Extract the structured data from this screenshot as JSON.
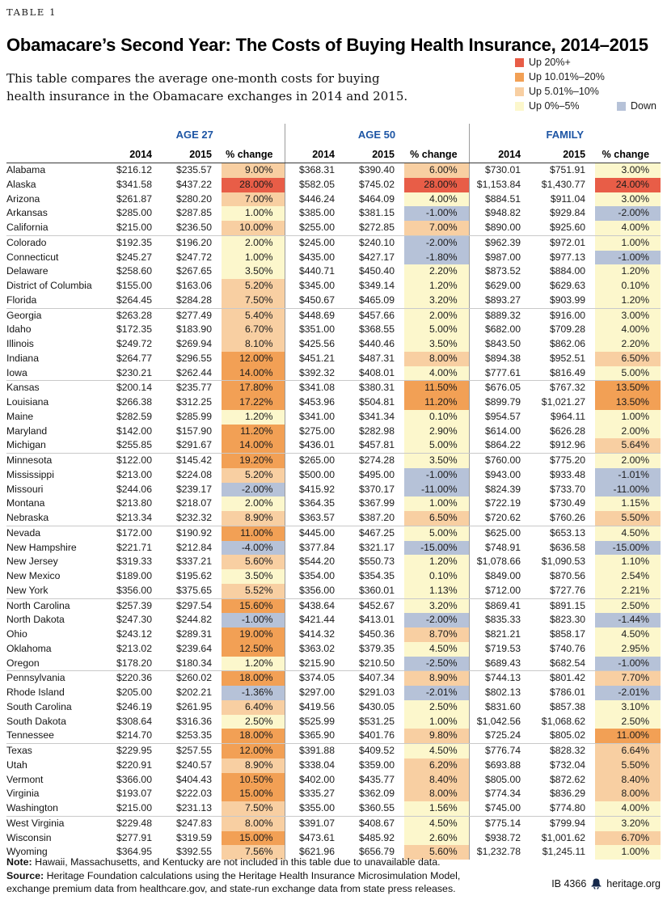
{
  "meta": {
    "table_label": "TABLE 1",
    "title": "Obamacare’s Second Year: The Costs of Buying Health Insurance, 2014–2015",
    "subtitle": "This table compares the average one-month costs for buying health insurance in the Obamacare exchanges in 2014 and 2015."
  },
  "colors": {
    "header_blue": "#1d55a4",
    "up20": "#e85d47",
    "up10": "#f2a055",
    "up5": "#f8cfa2",
    "up0": "#fcf7cc",
    "down": "#b6c2d8"
  },
  "legend": {
    "items": [
      {
        "label": "Up 20%+",
        "bucket": "b20"
      },
      {
        "label": "Up 10.01%–20%",
        "bucket": "b10"
      },
      {
        "label": "Up 5.01%–10%",
        "bucket": "b5"
      },
      {
        "label": "Up 0%–5%",
        "bucket": "b0"
      }
    ],
    "down_item": {
      "label": "Down",
      "bucket": "down"
    }
  },
  "columns": {
    "groups": [
      "AGE 27",
      "AGE 50",
      "FAMILY"
    ],
    "sub": [
      "2014",
      "2015",
      "% change"
    ]
  },
  "chart_data": {
    "type": "table",
    "title": "Obamacare’s Second Year: The Costs of Buying Health Insurance, 2014–2015",
    "column_groups": [
      "AGE 27",
      "AGE 50",
      "FAMILY"
    ],
    "sub_columns": [
      "2014",
      "2015",
      "% change"
    ],
    "color_rule": "pct<0: Down(blue); 0-5: pale yellow; 5.01-10: light orange; 10.01-20: orange; >20: red",
    "rows": [
      [
        "Alabama",
        "$216.12",
        "$235.57",
        "9.00%",
        "$368.31",
        "$390.40",
        "6.00%",
        "$730.01",
        "$751.91",
        "3.00%"
      ],
      [
        "Alaska",
        "$341.58",
        "$437.22",
        "28.00%",
        "$582.05",
        "$745.02",
        "28.00%",
        "$1,153.84",
        "$1,430.77",
        "24.00%"
      ],
      [
        "Arizona",
        "$261.87",
        "$280.20",
        "7.00%",
        "$446.24",
        "$464.09",
        "4.00%",
        "$884.51",
        "$911.04",
        "3.00%"
      ],
      [
        "Arkansas",
        "$285.00",
        "$287.85",
        "1.00%",
        "$385.00",
        "$381.15",
        "-1.00%",
        "$948.82",
        "$929.84",
        "-2.00%"
      ],
      [
        "California",
        "$215.00",
        "$236.50",
        "10.00%",
        "$255.00",
        "$272.85",
        "7.00%",
        "$890.00",
        "$925.60",
        "4.00%"
      ],
      [
        "Colorado",
        "$192.35",
        "$196.20",
        "2.00%",
        "$245.00",
        "$240.10",
        "-2.00%",
        "$962.39",
        "$972.01",
        "1.00%"
      ],
      [
        "Connecticut",
        "$245.27",
        "$247.72",
        "1.00%",
        "$435.00",
        "$427.17",
        "-1.80%",
        "$987.00",
        "$977.13",
        "-1.00%"
      ],
      [
        "Delaware",
        "$258.60",
        "$267.65",
        "3.50%",
        "$440.71",
        "$450.40",
        "2.20%",
        "$873.52",
        "$884.00",
        "1.20%"
      ],
      [
        "District of Columbia",
        "$155.00",
        "$163.06",
        "5.20%",
        "$345.00",
        "$349.14",
        "1.20%",
        "$629.00",
        "$629.63",
        "0.10%"
      ],
      [
        "Florida",
        "$264.45",
        "$284.28",
        "7.50%",
        "$450.67",
        "$465.09",
        "3.20%",
        "$893.27",
        "$903.99",
        "1.20%"
      ],
      [
        "Georgia",
        "$263.28",
        "$277.49",
        "5.40%",
        "$448.69",
        "$457.66",
        "2.00%",
        "$889.32",
        "$916.00",
        "3.00%"
      ],
      [
        "Idaho",
        "$172.35",
        "$183.90",
        "6.70%",
        "$351.00",
        "$368.55",
        "5.00%",
        "$682.00",
        "$709.28",
        "4.00%"
      ],
      [
        "Illinois",
        "$249.72",
        "$269.94",
        "8.10%",
        "$425.56",
        "$440.46",
        "3.50%",
        "$843.50",
        "$862.06",
        "2.20%"
      ],
      [
        "Indiana",
        "$264.77",
        "$296.55",
        "12.00%",
        "$451.21",
        "$487.31",
        "8.00%",
        "$894.38",
        "$952.51",
        "6.50%"
      ],
      [
        "Iowa",
        "$230.21",
        "$262.44",
        "14.00%",
        "$392.32",
        "$408.01",
        "4.00%",
        "$777.61",
        "$816.49",
        "5.00%"
      ],
      [
        "Kansas",
        "$200.14",
        "$235.77",
        "17.80%",
        "$341.08",
        "$380.31",
        "11.50%",
        "$676.05",
        "$767.32",
        "13.50%"
      ],
      [
        "Louisiana",
        "$266.38",
        "$312.25",
        "17.22%",
        "$453.96",
        "$504.81",
        "11.20%",
        "$899.79",
        "$1,021.27",
        "13.50%"
      ],
      [
        "Maine",
        "$282.59",
        "$285.99",
        "1.20%",
        "$341.00",
        "$341.34",
        "0.10%",
        "$954.57",
        "$964.11",
        "1.00%"
      ],
      [
        "Maryland",
        "$142.00",
        "$157.90",
        "11.20%",
        "$275.00",
        "$282.98",
        "2.90%",
        "$614.00",
        "$626.28",
        "2.00%"
      ],
      [
        "Michigan",
        "$255.85",
        "$291.67",
        "14.00%",
        "$436.01",
        "$457.81",
        "5.00%",
        "$864.22",
        "$912.96",
        "5.64%"
      ],
      [
        "Minnesota",
        "$122.00",
        "$145.42",
        "19.20%",
        "$265.00",
        "$274.28",
        "3.50%",
        "$760.00",
        "$775.20",
        "2.00%"
      ],
      [
        "Mississippi",
        "$213.00",
        "$224.08",
        "5.20%",
        "$500.00",
        "$495.00",
        "-1.00%",
        "$943.00",
        "$933.48",
        "-1.01%"
      ],
      [
        "Missouri",
        "$244.06",
        "$239.17",
        "-2.00%",
        "$415.92",
        "$370.17",
        "-11.00%",
        "$824.39",
        "$733.70",
        "-11.00%"
      ],
      [
        "Montana",
        "$213.80",
        "$218.07",
        "2.00%",
        "$364.35",
        "$367.99",
        "1.00%",
        "$722.19",
        "$730.49",
        "1.15%"
      ],
      [
        "Nebraska",
        "$213.34",
        "$232.32",
        "8.90%",
        "$363.57",
        "$387.20",
        "6.50%",
        "$720.62",
        "$760.26",
        "5.50%"
      ],
      [
        "Nevada",
        "$172.00",
        "$190.92",
        "11.00%",
        "$445.00",
        "$467.25",
        "5.00%",
        "$625.00",
        "$653.13",
        "4.50%"
      ],
      [
        "New Hampshire",
        "$221.71",
        "$212.84",
        "-4.00%",
        "$377.84",
        "$321.17",
        "-15.00%",
        "$748.91",
        "$636.58",
        "-15.00%"
      ],
      [
        "New Jersey",
        "$319.33",
        "$337.21",
        "5.60%",
        "$544.20",
        "$550.73",
        "1.20%",
        "$1,078.66",
        "$1,090.53",
        "1.10%"
      ],
      [
        "New Mexico",
        "$189.00",
        "$195.62",
        "3.50%",
        "$354.00",
        "$354.35",
        "0.10%",
        "$849.00",
        "$870.56",
        "2.54%"
      ],
      [
        "New York",
        "$356.00",
        "$375.65",
        "5.52%",
        "$356.00",
        "$360.01",
        "1.13%",
        "$712.00",
        "$727.76",
        "2.21%"
      ],
      [
        "North Carolina",
        "$257.39",
        "$297.54",
        "15.60%",
        "$438.64",
        "$452.67",
        "3.20%",
        "$869.41",
        "$891.15",
        "2.50%"
      ],
      [
        "North Dakota",
        "$247.30",
        "$244.82",
        "-1.00%",
        "$421.44",
        "$413.01",
        "-2.00%",
        "$835.33",
        "$823.30",
        "-1.44%"
      ],
      [
        "Ohio",
        "$243.12",
        "$289.31",
        "19.00%",
        "$414.32",
        "$450.36",
        "8.70%",
        "$821.21",
        "$858.17",
        "4.50%"
      ],
      [
        "Oklahoma",
        "$213.02",
        "$239.64",
        "12.50%",
        "$363.02",
        "$379.35",
        "4.50%",
        "$719.53",
        "$740.76",
        "2.95%"
      ],
      [
        "Oregon",
        "$178.20",
        "$180.34",
        "1.20%",
        "$215.90",
        "$210.50",
        "-2.50%",
        "$689.43",
        "$682.54",
        "-1.00%"
      ],
      [
        "Pennsylvania",
        "$220.36",
        "$260.02",
        "18.00%",
        "$374.05",
        "$407.34",
        "8.90%",
        "$744.13",
        "$801.42",
        "7.70%"
      ],
      [
        "Rhode Island",
        "$205.00",
        "$202.21",
        "-1.36%",
        "$297.00",
        "$291.03",
        "-2.01%",
        "$802.13",
        "$786.01",
        "-2.01%"
      ],
      [
        "South Carolina",
        "$246.19",
        "$261.95",
        "6.40%",
        "$419.56",
        "$430.05",
        "2.50%",
        "$831.60",
        "$857.38",
        "3.10%"
      ],
      [
        "South Dakota",
        "$308.64",
        "$316.36",
        "2.50%",
        "$525.99",
        "$531.25",
        "1.00%",
        "$1,042.56",
        "$1,068.62",
        "2.50%"
      ],
      [
        "Tennessee",
        "$214.70",
        "$253.35",
        "18.00%",
        "$365.90",
        "$401.76",
        "9.80%",
        "$725.24",
        "$805.02",
        "11.00%"
      ],
      [
        "Texas",
        "$229.95",
        "$257.55",
        "12.00%",
        "$391.88",
        "$409.52",
        "4.50%",
        "$776.74",
        "$828.32",
        "6.64%"
      ],
      [
        "Utah",
        "$220.91",
        "$240.57",
        "8.90%",
        "$338.04",
        "$359.00",
        "6.20%",
        "$693.88",
        "$732.04",
        "5.50%"
      ],
      [
        "Vermont",
        "$366.00",
        "$404.43",
        "10.50%",
        "$402.00",
        "$435.77",
        "8.40%",
        "$805.00",
        "$872.62",
        "8.40%"
      ],
      [
        "Virginia",
        "$193.07",
        "$222.03",
        "15.00%",
        "$335.27",
        "$362.09",
        "8.00%",
        "$774.34",
        "$836.29",
        "8.00%"
      ],
      [
        "Washington",
        "$215.00",
        "$231.13",
        "7.50%",
        "$355.00",
        "$360.55",
        "1.56%",
        "$745.00",
        "$774.80",
        "4.00%"
      ],
      [
        "West Virginia",
        "$229.48",
        "$247.83",
        "8.00%",
        "$391.07",
        "$408.67",
        "4.50%",
        "$775.14",
        "$799.94",
        "3.20%"
      ],
      [
        "Wisconsin",
        "$277.91",
        "$319.59",
        "15.00%",
        "$473.61",
        "$485.92",
        "2.60%",
        "$938.72",
        "$1,001.62",
        "6.70%"
      ],
      [
        "Wyoming",
        "$364.95",
        "$392.55",
        "7.56%",
        "$621.96",
        "$656.79",
        "5.60%",
        "$1,232.78",
        "$1,245.11",
        "1.00%"
      ]
    ]
  },
  "notes": {
    "note_label": "Note:",
    "note_text": " Hawaii, Massachusetts, and Kentucky are not included in this table due to unavailable data.",
    "source_label": "Source:",
    "source_text": " Heritage Foundation calculations using the Heritage Health Insurance Microsimulation Model, exchange premium data from healthcare.gov, and state-run exchange data from state press releases."
  },
  "footer": {
    "ib": "IB 4366",
    "site": "heritage.org"
  }
}
